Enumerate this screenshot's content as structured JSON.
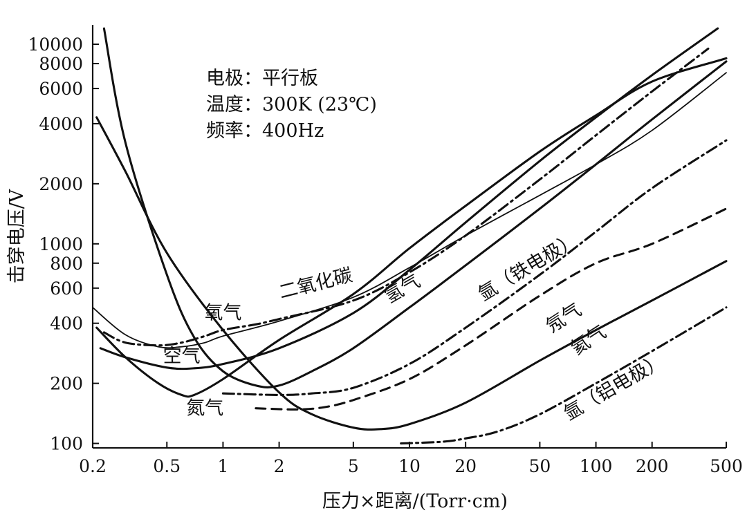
{
  "chart_data": {
    "type": "line",
    "title": "",
    "xlabel": "压力×距离/(Torr·cm)",
    "ylabel": "击穿电压/V",
    "x_scale": "log",
    "y_scale": "log",
    "xlim": [
      0.2,
      500
    ],
    "ylim": [
      95,
      12500
    ],
    "x_ticks": [
      {
        "value": 0.2,
        "label": "0.2"
      },
      {
        "value": 0.5,
        "label": "0.5"
      },
      {
        "value": 1,
        "label": "1"
      },
      {
        "value": 2,
        "label": "2"
      },
      {
        "value": 5,
        "label": "5"
      },
      {
        "value": 10,
        "label": "10"
      },
      {
        "value": 20,
        "label": "20"
      },
      {
        "value": 50,
        "label": "50"
      },
      {
        "value": 100,
        "label": "100"
      },
      {
        "value": 200,
        "label": "200"
      },
      {
        "value": 500,
        "label": "500"
      }
    ],
    "y_ticks": [
      {
        "value": 100,
        "label": "100"
      },
      {
        "value": 200,
        "label": "200"
      },
      {
        "value": 400,
        "label": "400"
      },
      {
        "value": 600,
        "label": "600"
      },
      {
        "value": 800,
        "label": "800"
      },
      {
        "value": 1000,
        "label": "1000"
      },
      {
        "value": 2000,
        "label": "2000"
      },
      {
        "value": 4000,
        "label": "4000"
      },
      {
        "value": 6000,
        "label": "6000"
      },
      {
        "value": 8000,
        "label": "8000"
      },
      {
        "value": 10000,
        "label": "10000"
      }
    ],
    "info_lines": [
      "电极：平行板",
      "温度：300K (23℃)",
      "频率：400Hz"
    ],
    "series": [
      {
        "name": "空气",
        "style": "thin",
        "points": [
          [
            0.2,
            480
          ],
          [
            0.3,
            350
          ],
          [
            0.45,
            305
          ],
          [
            0.6,
            305
          ],
          [
            0.8,
            320
          ],
          [
            1,
            345
          ],
          [
            2,
            410
          ],
          [
            5,
            540
          ],
          [
            10,
            760
          ],
          [
            20,
            1100
          ],
          [
            50,
            1750
          ],
          [
            100,
            2500
          ],
          [
            200,
            3700
          ],
          [
            500,
            7200
          ]
        ]
      },
      {
        "name": "氧气",
        "style": "dashdot",
        "points": [
          [
            0.23,
            360
          ],
          [
            0.3,
            320
          ],
          [
            0.45,
            310
          ],
          [
            0.6,
            320
          ],
          [
            0.8,
            345
          ],
          [
            1,
            370
          ],
          [
            1.5,
            395
          ],
          [
            2,
            420
          ],
          [
            5,
            520
          ],
          [
            10,
            720
          ],
          [
            20,
            1100
          ],
          [
            50,
            2100
          ],
          [
            100,
            3500
          ],
          [
            200,
            5800
          ],
          [
            400,
            9500
          ]
        ]
      },
      {
        "name": "二氧化碳",
        "style": "thick",
        "points": [
          [
            0.22,
            300
          ],
          [
            0.3,
            270
          ],
          [
            0.5,
            240
          ],
          [
            0.7,
            238
          ],
          [
            1,
            250
          ],
          [
            2,
            300
          ],
          [
            5,
            450
          ],
          [
            10,
            740
          ],
          [
            20,
            1280
          ],
          [
            50,
            2600
          ],
          [
            100,
            4300
          ],
          [
            200,
            7000
          ],
          [
            450,
            12000
          ]
        ]
      },
      {
        "name": "氮气",
        "style": "thick",
        "points": [
          [
            0.21,
            380
          ],
          [
            0.3,
            270
          ],
          [
            0.45,
            200
          ],
          [
            0.6,
            175
          ],
          [
            0.7,
            175
          ],
          [
            1,
            210
          ],
          [
            2,
            330
          ],
          [
            5,
            560
          ],
          [
            10,
            950
          ],
          [
            20,
            1550
          ],
          [
            50,
            2900
          ],
          [
            100,
            4400
          ],
          [
            200,
            6500
          ],
          [
            500,
            8500
          ]
        ]
      },
      {
        "name": "氢气",
        "style": "thick",
        "points": [
          [
            0.23,
            12000
          ],
          [
            0.3,
            3200
          ],
          [
            0.5,
            700
          ],
          [
            0.7,
            340
          ],
          [
            1,
            230
          ],
          [
            1.5,
            195
          ],
          [
            2,
            195
          ],
          [
            3,
            230
          ],
          [
            5,
            300
          ],
          [
            10,
            480
          ],
          [
            20,
            780
          ],
          [
            50,
            1500
          ],
          [
            100,
            2500
          ],
          [
            200,
            4200
          ],
          [
            500,
            8200
          ]
        ]
      },
      {
        "name": "氩（铁电极）",
        "style": "dashdot",
        "points": [
          [
            1,
            178
          ],
          [
            2,
            175
          ],
          [
            3,
            178
          ],
          [
            5,
            190
          ],
          [
            10,
            250
          ],
          [
            20,
            380
          ],
          [
            50,
            700
          ],
          [
            100,
            1150
          ],
          [
            200,
            1900
          ],
          [
            500,
            3300
          ]
        ]
      },
      {
        "name": "氖气",
        "style": "dashed",
        "points": [
          [
            1.5,
            150
          ],
          [
            2.5,
            148
          ],
          [
            3.5,
            152
          ],
          [
            5,
            165
          ],
          [
            10,
            210
          ],
          [
            20,
            310
          ],
          [
            50,
            550
          ],
          [
            100,
            800
          ],
          [
            200,
            1000
          ],
          [
            500,
            1500
          ]
        ]
      },
      {
        "name": "氦气",
        "style": "thick",
        "points": [
          [
            0.21,
            4300
          ],
          [
            0.3,
            2300
          ],
          [
            0.5,
            900
          ],
          [
            1,
            370
          ],
          [
            2,
            180
          ],
          [
            3,
            140
          ],
          [
            5,
            120
          ],
          [
            7,
            118
          ],
          [
            10,
            125
          ],
          [
            20,
            160
          ],
          [
            50,
            260
          ],
          [
            100,
            370
          ],
          [
            200,
            520
          ],
          [
            500,
            820
          ]
        ]
      },
      {
        "name": "氩（铝电极）",
        "style": "dashdot",
        "points": [
          [
            9,
            100
          ],
          [
            15,
            102
          ],
          [
            20,
            106
          ],
          [
            30,
            115
          ],
          [
            50,
            140
          ],
          [
            100,
            200
          ],
          [
            200,
            290
          ],
          [
            500,
            480
          ]
        ]
      }
    ],
    "annotations": [
      {
        "text": "氧气",
        "x": 1.0,
        "y": 420
      },
      {
        "text": "二氧化碳",
        "x": 3.2,
        "y": 590
      },
      {
        "text": "空气",
        "x": 0.6,
        "y": 255
      },
      {
        "text": "氮气",
        "x": 0.8,
        "y": 140
      },
      {
        "text": "氢气",
        "x": 9.5,
        "y": 560
      },
      {
        "text": "氩（铁电极）",
        "x": 45,
        "y": 720
      },
      {
        "text": "氖气",
        "x": 70,
        "y": 400
      },
      {
        "text": "氦气",
        "x": 95,
        "y": 310
      },
      {
        "text": "氩（铝电极）",
        "x": 130,
        "y": 180
      }
    ]
  }
}
